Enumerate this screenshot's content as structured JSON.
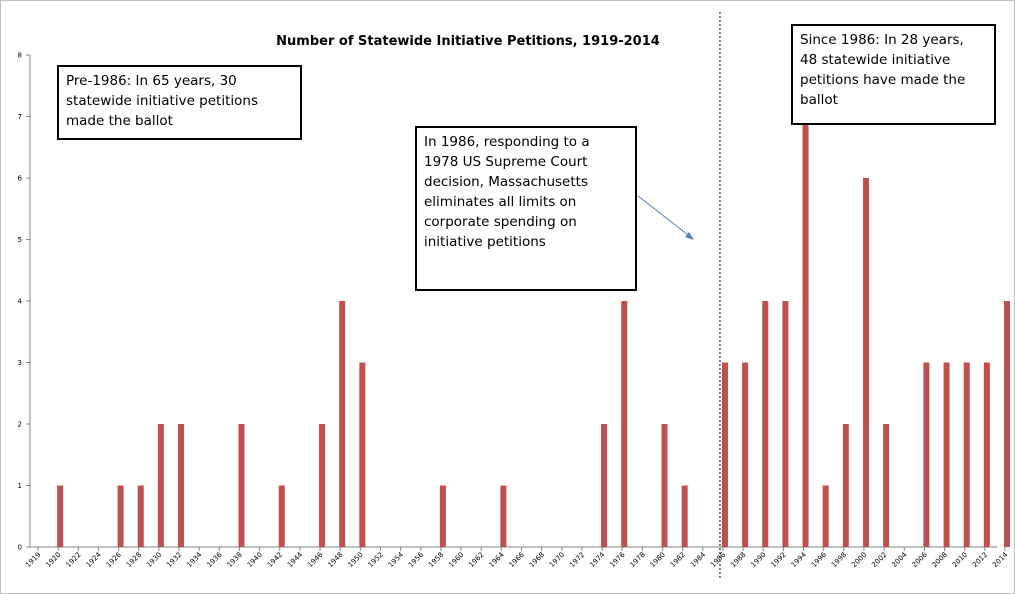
{
  "chart_data": {
    "type": "bar",
    "title": "Number of Statewide Initiative Petitions, 1919-2014",
    "xlabel": "",
    "ylabel": "",
    "ylim": [
      0,
      8
    ],
    "yticks": [
      "0",
      "1",
      "2",
      "3",
      "4",
      "5",
      "6",
      "7",
      "8"
    ],
    "grid": false,
    "legend": "none",
    "bar_color": "#c0504d",
    "marker_year": 1986,
    "tick_labels": [
      "1919",
      "1920",
      "1922",
      "1924",
      "1926",
      "1928",
      "1930",
      "1932",
      "1934",
      "1936",
      "1938",
      "1940",
      "1942",
      "1944",
      "1946",
      "1948",
      "1950",
      "1952",
      "1954",
      "1956",
      "1958",
      "1960",
      "1962",
      "1964",
      "1966",
      "1968",
      "1970",
      "1972",
      "1974",
      "1976",
      "1978",
      "1980",
      "1982",
      "1984",
      "1986",
      "1988",
      "1990",
      "1992",
      "1994",
      "1996",
      "1998",
      "2000",
      "2002",
      "2004",
      "2006",
      "2008",
      "2010",
      "2012",
      "2014"
    ],
    "categories": [
      "1919",
      "1920",
      "1922",
      "1924",
      "1926",
      "1928",
      "1930",
      "1932",
      "1934",
      "1936",
      "1938",
      "1940",
      "1942",
      "1944",
      "1946",
      "1948",
      "1950",
      "1952",
      "1954",
      "1956",
      "1958",
      "1960",
      "1962",
      "1964",
      "1966",
      "1968",
      "1970",
      "1972",
      "1974",
      "1976",
      "1978",
      "1980",
      "1982",
      "1984",
      "1986",
      "1988",
      "1990",
      "1992",
      "1994",
      "1996",
      "1998",
      "2000",
      "2002",
      "2004",
      "2006",
      "2008",
      "2010",
      "2012",
      "2014"
    ],
    "values": [
      0,
      1,
      0,
      0,
      1,
      1,
      2,
      2,
      0,
      0,
      2,
      0,
      1,
      0,
      2,
      4,
      3,
      0,
      0,
      0,
      1,
      0,
      0,
      1,
      0,
      0,
      0,
      0,
      2,
      4,
      0,
      2,
      1,
      0,
      3,
      3,
      4,
      4,
      7,
      1,
      2,
      6,
      2,
      0,
      3,
      3,
      3,
      3,
      4
    ]
  },
  "annotations": {
    "pre": [
      "Pre-1986: In 65 years, 30",
      "statewide initiative petitions",
      "made the ballot"
    ],
    "mid": [
      "In 1986, responding to a",
      "1978 US Supreme Court",
      "decision, Massachusetts",
      "eliminates all limits on",
      "corporate spending on",
      "initiative petitions"
    ],
    "post": [
      "Since 1986: In 28 years,",
      "48 statewide initiative",
      "petitions  have made the",
      "ballot"
    ]
  }
}
